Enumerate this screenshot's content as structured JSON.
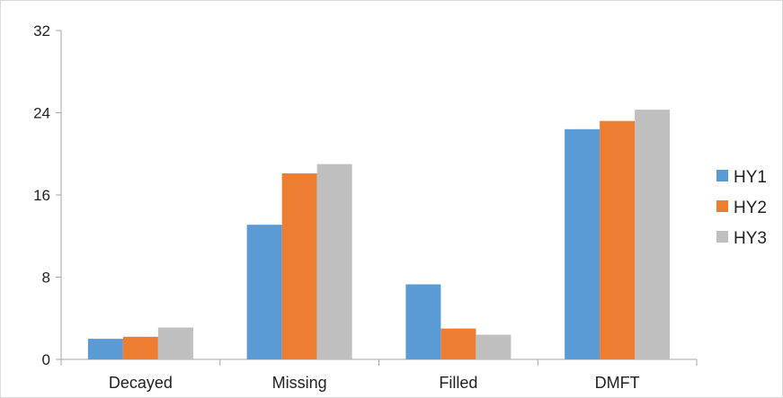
{
  "chart_data": {
    "type": "bar",
    "categories": [
      "Decayed",
      "Missing",
      "Filled",
      "DMFT"
    ],
    "series": [
      {
        "name": "HY1",
        "color": "#5b9bd5",
        "values": [
          2.0,
          13.1,
          7.3,
          22.4
        ]
      },
      {
        "name": "HY2",
        "color": "#ed7d31",
        "values": [
          2.2,
          18.1,
          3.0,
          23.2
        ]
      },
      {
        "name": "HY3",
        "color": "#bfbfbf",
        "values": [
          3.1,
          19.0,
          2.4,
          24.3
        ]
      }
    ],
    "ylim": [
      0,
      32
    ],
    "yticks": [
      "0",
      "8",
      "16",
      "24",
      "32"
    ],
    "title": "",
    "xlabel": "",
    "ylabel": "",
    "grid": false,
    "legend_position": "right"
  }
}
